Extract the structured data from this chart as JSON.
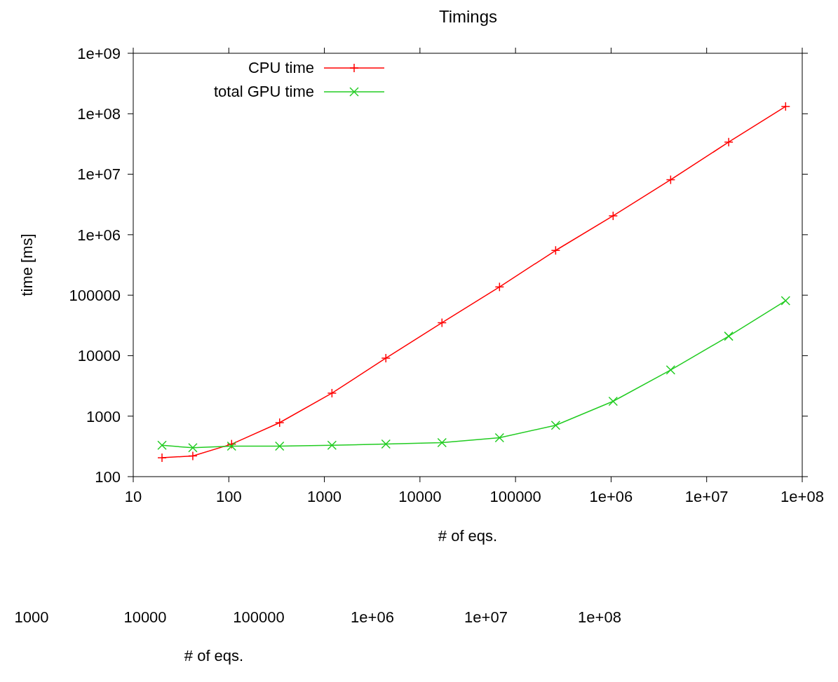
{
  "chart_data": {
    "type": "line",
    "title": "Timings",
    "xlabel": "# of eqs.",
    "ylabel": "time [ms]",
    "x": [
      20,
      42,
      107,
      340,
      1200,
      4400,
      17000,
      68000,
      263000,
      1050000,
      4200000,
      17000000,
      67000000
    ],
    "series": [
      {
        "name": "CPU time",
        "color": "#ff0000",
        "marker": "plus",
        "values": [
          205,
          220,
          345,
          780,
          2400,
          9100,
          35000,
          137000,
          550000,
          2050000,
          8100000,
          34000000,
          132000000
        ]
      },
      {
        "name": "total GPU time",
        "color": "#22cc22",
        "marker": "cross",
        "values": [
          330,
          300,
          320,
          320,
          330,
          345,
          365,
          440,
          705,
          1760,
          5800,
          21000,
          81000
        ]
      }
    ],
    "log": "xy",
    "line_style": "solid",
    "legend": "top left",
    "xlim": [
      10,
      100000000
    ],
    "xticks": [
      10,
      100,
      1000,
      10000,
      100000,
      {
        "value": 1000000,
        "label": "1e+06"
      },
      {
        "value": 10000000,
        "label": "1e+07"
      },
      {
        "value": 100000000,
        "label": "1e+08"
      }
    ],
    "ylim": [
      100,
      1000000000
    ],
    "yticks": [
      100,
      1000,
      10000,
      100000,
      {
        "value": 1000000,
        "label": "1e+06"
      },
      {
        "value": 10000000,
        "label": "1e+07"
      },
      {
        "value": 100000000,
        "label": "1e+08"
      },
      {
        "value": 1000000000,
        "label": "1e+09"
      }
    ],
    "annotations": [
      "1000",
      "10000",
      "100000",
      "1e+06",
      "1e+07",
      "1e+08",
      "# of eqs."
    ]
  }
}
